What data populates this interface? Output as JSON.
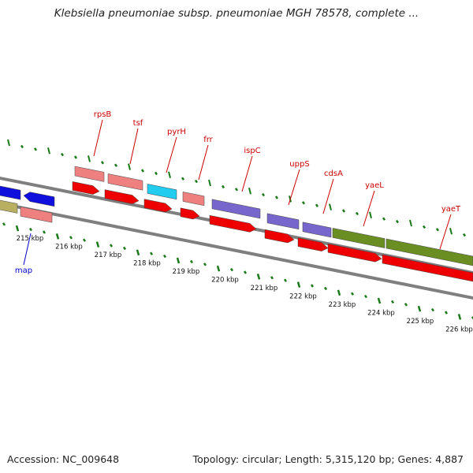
{
  "title": "Klebsiella pneumoniae subsp. pneumoniae MGH 78578, complete ...",
  "accession": "Accession: NC_009648",
  "summary": "Topology: circular; Length: 5,315,120 bp; Genes: 4,887",
  "colors": {
    "gene_label": "#cc0000",
    "gene_label_blue": "#0000cc",
    "tick": "#1a7a1a",
    "backbone": "#7f7f7f",
    "cds": "#ee0000",
    "gene_pink": "#ee8080",
    "gene_cyan": "#22ccee",
    "gene_purple": "#7766cc",
    "gene_olive": "#6b8e23",
    "gene_blue": "#1010dd",
    "gene_khaki": "#b8b060"
  },
  "ticks": [
    "215 kbp",
    "216 kbp",
    "217 kbp",
    "218 kbp",
    "219 kbp",
    "220 kbp",
    "221 kbp",
    "222 kbp",
    "223 kbp",
    "224 kbp",
    "225 kbp",
    "226 kbp"
  ],
  "genes": [
    {
      "name": "rpsB",
      "color": "red"
    },
    {
      "name": "tsf",
      "color": "red"
    },
    {
      "name": "pyrH",
      "color": "red"
    },
    {
      "name": "frr",
      "color": "red"
    },
    {
      "name": "ispC",
      "color": "red"
    },
    {
      "name": "uppS",
      "color": "red"
    },
    {
      "name": "cdsA",
      "color": "red"
    },
    {
      "name": "yaeL",
      "color": "red"
    },
    {
      "name": "yaeT",
      "color": "red"
    },
    {
      "name": "map",
      "color": "blue"
    }
  ]
}
